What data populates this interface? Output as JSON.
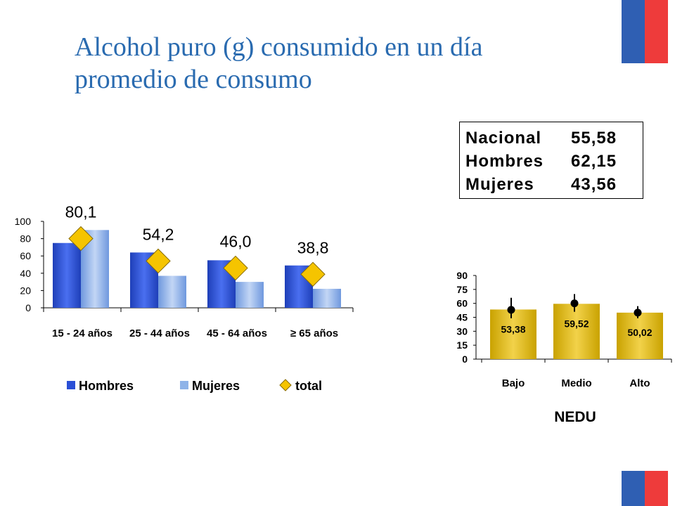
{
  "title": "Alcohol puro (g) consumido en un día promedio de consumo",
  "summary_table": [
    {
      "label": "Nacional",
      "value": "55,58"
    },
    {
      "label": "Hombres",
      "value": "62,15"
    },
    {
      "label": "Mujeres",
      "value": "43,56"
    }
  ],
  "colors": {
    "flag_blue": "#2f5fb3",
    "flag_red": "#ee3b3b",
    "title": "#2a6bb0",
    "hombres": "#2a4fd6",
    "mujeres": "#8fb3e8",
    "total": "#f5c400",
    "nedu_bar": "#e0b800"
  },
  "chart_data": [
    {
      "type": "bar",
      "categories": [
        "15 - 24 años",
        "25 - 44 años",
        "45 - 64 años",
        "≥ 65 años"
      ],
      "series": [
        {
          "name": "Hombres",
          "values": [
            75,
            64,
            55,
            49
          ]
        },
        {
          "name": "Mujeres",
          "values": [
            90,
            37,
            30,
            22
          ]
        },
        {
          "name": "total",
          "values": [
            80.1,
            54.2,
            46.0,
            38.8
          ],
          "marker": "diamond"
        }
      ],
      "data_labels": [
        "80,1",
        "54,2",
        "46,0",
        "38,8"
      ],
      "yticks": [
        "0",
        "20",
        "40",
        "60",
        "80",
        "100"
      ],
      "ylim": [
        0,
        100
      ],
      "legend": "bottom"
    },
    {
      "type": "bar",
      "categories": [
        "Bajo",
        "Medio",
        "Alto"
      ],
      "values": [
        53.38,
        59.52,
        50.02
      ],
      "data_labels": [
        "53,38",
        "59,52",
        "50,02"
      ],
      "error_points": [
        53,
        60,
        50
      ],
      "error_low": [
        44,
        51,
        44
      ],
      "error_high": [
        66,
        70,
        57
      ],
      "yticks": [
        "0",
        "15",
        "30",
        "45",
        "60",
        "75",
        "90"
      ],
      "ylim": [
        0,
        90
      ],
      "xlabel": "NEDU"
    }
  ]
}
